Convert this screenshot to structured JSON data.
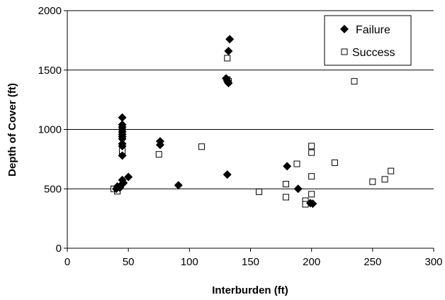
{
  "chart_data": {
    "type": "scatter",
    "xlabel": "Interburden (ft)",
    "ylabel": "Depth of Cover (ft)",
    "xlim": [
      0,
      300
    ],
    "ylim": [
      0,
      2000
    ],
    "x_ticks": [
      "0",
      "50",
      "100",
      "150",
      "200",
      "250",
      "300"
    ],
    "y_ticks": [
      "0",
      "500",
      "1000",
      "1500",
      "2000"
    ],
    "grid": "horizontal",
    "legend_position": "top-right",
    "series": [
      {
        "name": "Failure",
        "marker": "diamond-filled",
        "color": "#000000",
        "points": [
          [
            40,
            500
          ],
          [
            41,
            520
          ],
          [
            43,
            510
          ],
          [
            44,
            530
          ],
          [
            45,
            540
          ],
          [
            46,
            550
          ],
          [
            45,
            575
          ],
          [
            50,
            600
          ],
          [
            45,
            780
          ],
          [
            45,
            860
          ],
          [
            45,
            880
          ],
          [
            45,
            920
          ],
          [
            45,
            940
          ],
          [
            45,
            960
          ],
          [
            45,
            980
          ],
          [
            45,
            1000
          ],
          [
            45,
            1020
          ],
          [
            45,
            1040
          ],
          [
            45,
            1100
          ],
          [
            76,
            870
          ],
          [
            76,
            900
          ],
          [
            91,
            530
          ],
          [
            130,
            1430
          ],
          [
            131,
            1410
          ],
          [
            132,
            1390
          ],
          [
            132,
            1660
          ],
          [
            133,
            1760
          ],
          [
            131,
            620
          ],
          [
            180,
            690
          ],
          [
            189,
            500
          ],
          [
            199,
            380
          ],
          [
            201,
            375
          ]
        ]
      },
      {
        "name": "Success",
        "marker": "square-open",
        "color": "#000000",
        "points": [
          [
            38,
            500
          ],
          [
            41,
            480
          ],
          [
            45,
            800
          ],
          [
            45,
            820
          ],
          [
            45,
            1000
          ],
          [
            75,
            790
          ],
          [
            110,
            855
          ],
          [
            131,
            1600
          ],
          [
            131,
            1420
          ],
          [
            132,
            1405
          ],
          [
            157,
            475
          ],
          [
            179,
            540
          ],
          [
            179,
            430
          ],
          [
            188,
            710
          ],
          [
            195,
            400
          ],
          [
            195,
            370
          ],
          [
            200,
            860
          ],
          [
            200,
            805
          ],
          [
            200,
            605
          ],
          [
            200,
            455
          ],
          [
            219,
            720
          ],
          [
            235,
            1405
          ],
          [
            250,
            560
          ],
          [
            260,
            580
          ],
          [
            265,
            650
          ]
        ]
      }
    ]
  }
}
